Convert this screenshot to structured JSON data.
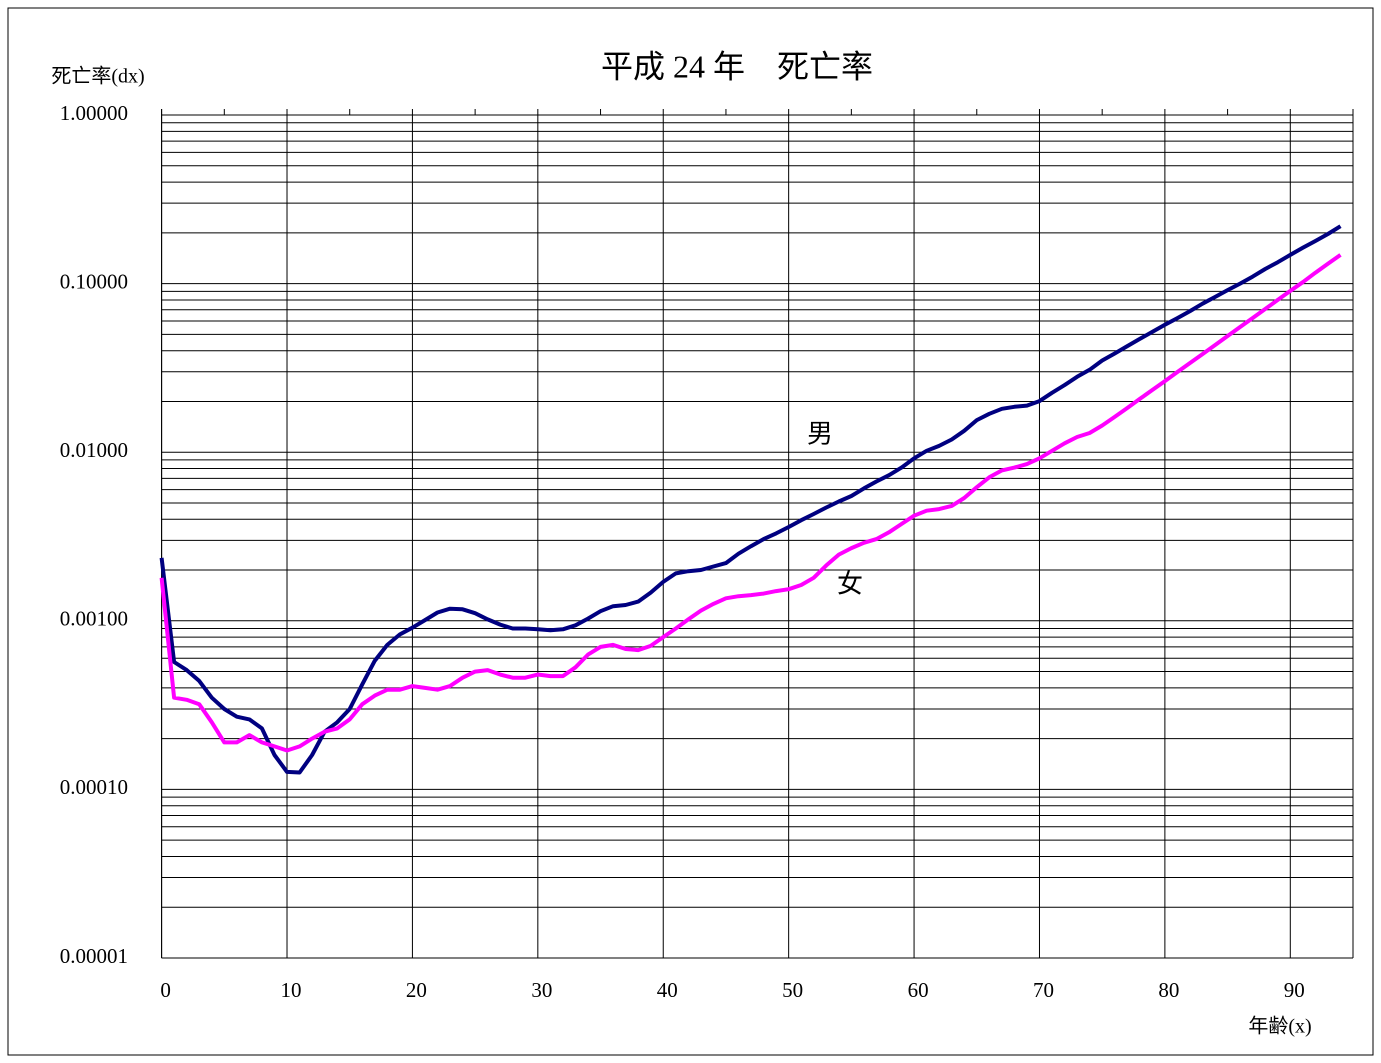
{
  "chart_data": {
    "type": "line",
    "title": "平成 24 年　死亡率",
    "y_label": "死亡率(dx)",
    "x_label": "年齢(x)",
    "x": [
      0,
      1,
      2,
      3,
      4,
      5,
      6,
      7,
      8,
      9,
      10,
      11,
      12,
      13,
      14,
      15,
      16,
      17,
      18,
      19,
      20,
      21,
      22,
      23,
      24,
      25,
      26,
      27,
      28,
      29,
      30,
      31,
      32,
      33,
      34,
      35,
      36,
      37,
      38,
      39,
      40,
      41,
      42,
      43,
      44,
      45,
      46,
      47,
      48,
      49,
      50,
      51,
      52,
      53,
      54,
      55,
      56,
      57,
      58,
      59,
      60,
      61,
      62,
      63,
      64,
      65,
      66,
      67,
      68,
      69,
      70,
      71,
      72,
      73,
      74,
      75,
      76,
      77,
      78,
      79,
      80,
      81,
      82,
      83,
      84,
      85,
      86,
      87,
      88,
      89,
      90,
      91,
      92,
      93,
      94
    ],
    "series": [
      {
        "name": "男",
        "color": "#000080",
        "values": [
          0.00236,
          0.00057,
          0.00051,
          0.00044,
          0.00035,
          0.0003,
          0.00027,
          0.00026,
          0.00023,
          0.00016,
          0.000127,
          0.000126,
          0.00016,
          0.00022,
          0.00025,
          0.0003,
          0.00042,
          0.00058,
          0.00072,
          0.00083,
          0.00091,
          0.00101,
          0.00112,
          0.00118,
          0.00117,
          0.00111,
          0.00102,
          0.00095,
          0.0009,
          0.0009,
          0.00089,
          0.00088,
          0.00089,
          0.00094,
          0.00103,
          0.00114,
          0.00122,
          0.00124,
          0.0013,
          0.00147,
          0.0017,
          0.00191,
          0.00197,
          0.002,
          0.0021,
          0.0022,
          0.0025,
          0.00277,
          0.00305,
          0.0033,
          0.0036,
          0.00395,
          0.0043,
          0.0047,
          0.0051,
          0.0055,
          0.0061,
          0.0067,
          0.0073,
          0.0081,
          0.0092,
          0.0102,
          0.0109,
          0.0119,
          0.0134,
          0.0155,
          0.0169,
          0.0181,
          0.0186,
          0.0189,
          0.0201,
          0.0225,
          0.025,
          0.028,
          0.0308,
          0.035,
          0.0385,
          0.0426,
          0.047,
          0.0517,
          0.057,
          0.0624,
          0.0687,
          0.076,
          0.0833,
          0.0915,
          0.1,
          0.11,
          0.122,
          0.134,
          0.148,
          0.163,
          0.179,
          0.197,
          0.219
        ]
      },
      {
        "name": "女",
        "color": "#ff00ff",
        "values": [
          0.0018,
          0.00035,
          0.00034,
          0.00032,
          0.00025,
          0.00019,
          0.00019,
          0.00021,
          0.00019,
          0.00018,
          0.00017,
          0.00018,
          0.0002,
          0.00022,
          0.00023,
          0.00026,
          0.00032,
          0.00036,
          0.00039,
          0.00039,
          0.00041,
          0.0004,
          0.00039,
          0.00041,
          0.00046,
          0.0005,
          0.00051,
          0.00048,
          0.00046,
          0.00046,
          0.00048,
          0.00047,
          0.00047,
          0.00053,
          0.00063,
          0.0007,
          0.00072,
          0.00068,
          0.00067,
          0.00071,
          0.0008,
          0.0009,
          0.00102,
          0.00115,
          0.00126,
          0.00136,
          0.0014,
          0.00142,
          0.00145,
          0.0015,
          0.00154,
          0.00163,
          0.0018,
          0.00213,
          0.00247,
          0.0027,
          0.0029,
          0.00305,
          0.00335,
          0.00375,
          0.0042,
          0.0045,
          0.0046,
          0.0048,
          0.00535,
          0.0062,
          0.0071,
          0.0078,
          0.0081,
          0.0085,
          0.0092,
          0.0102,
          0.0113,
          0.0123,
          0.013,
          0.0144,
          0.0162,
          0.0183,
          0.0207,
          0.0234,
          0.0264,
          0.0299,
          0.0338,
          0.0382,
          0.0432,
          0.0489,
          0.0553,
          0.0625,
          0.0707,
          0.08,
          0.0905,
          0.102,
          0.116,
          0.131,
          0.148
        ]
      }
    ],
    "xlim": [
      0,
      95
    ],
    "xticks": [
      0,
      10,
      20,
      30,
      40,
      50,
      60,
      70,
      80,
      90
    ],
    "ylim": [
      1e-05,
      1
    ],
    "log_y": true,
    "grid": true,
    "yticks": [
      {
        "value": 1,
        "label": "1.00000"
      },
      {
        "value": 0.1,
        "label": "0.10000"
      },
      {
        "value": 0.01,
        "label": "0.01000"
      },
      {
        "value": 0.001,
        "label": "0.00100"
      },
      {
        "value": 0.0001,
        "label": "0.00010"
      },
      {
        "value": 1e-05,
        "label": "0.00001"
      }
    ]
  }
}
